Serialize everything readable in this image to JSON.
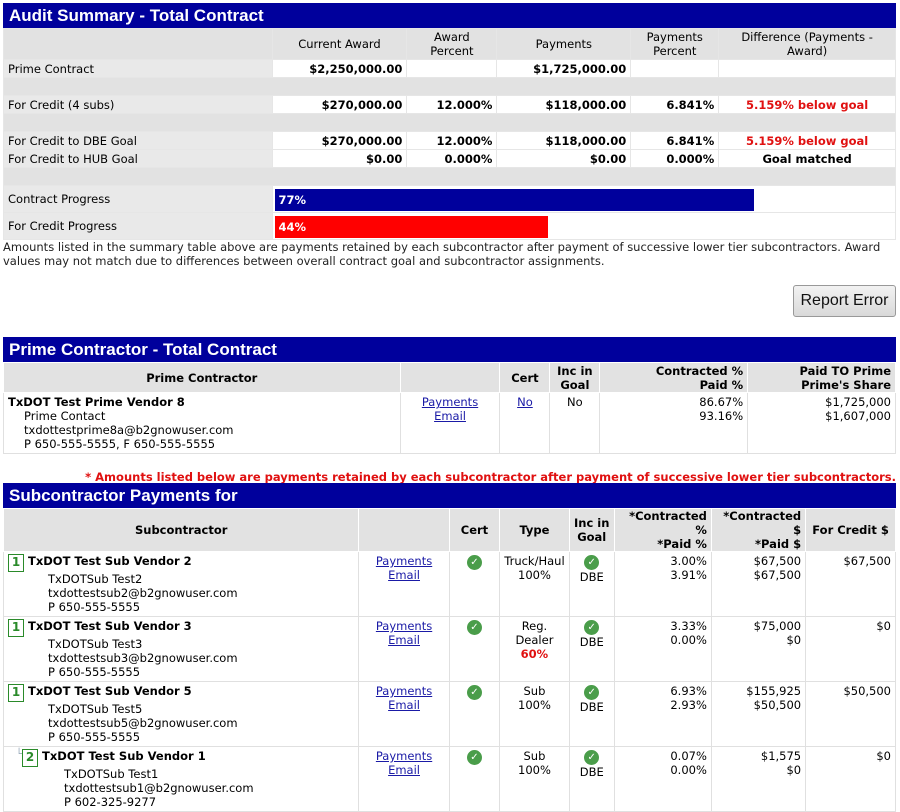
{
  "audit": {
    "title": "Audit Summary - Total Contract",
    "headers": [
      "Current Award",
      "Award Percent",
      "Payments",
      "Payments Percent",
      "Difference (Payments - Award)"
    ],
    "rows": {
      "prime": {
        "label": "Prime Contract",
        "award": "$2,250,000.00",
        "pct": "",
        "payments": "$1,725,000.00",
        "ppct": "",
        "diff": ""
      },
      "credit": {
        "label": "For Credit (4 subs)",
        "award": "$270,000.00",
        "pct": "12.000%",
        "payments": "$118,000.00",
        "ppct": "6.841%",
        "diff": "5.159% below goal"
      },
      "dbe": {
        "label": "For Credit to DBE Goal",
        "award": "$270,000.00",
        "pct": "12.000%",
        "payments": "$118,000.00",
        "ppct": "6.841%",
        "diff": "5.159% below goal"
      },
      "hub": {
        "label": "For Credit to HUB Goal",
        "award": "$0.00",
        "pct": "0.000%",
        "payments": "$0.00",
        "ppct": "0.000%",
        "diff": "Goal matched"
      }
    },
    "contract_progress": {
      "label": "Contract Progress",
      "text": "77%",
      "value": 0.77,
      "color": "#00009c"
    },
    "credit_progress": {
      "label": "For Credit Progress",
      "text": "44%",
      "value": 0.44,
      "color": "#ff0000"
    },
    "note": "Amounts listed in the summary table above are payments retained by each subcontractor after payment of successive lower tier subcontractors. Award values may not match due to differences between overall contract goal and subcontractor assignments."
  },
  "report_error_label": "Report Error",
  "prime": {
    "title": "Prime Contractor - Total Contract",
    "headers": {
      "contractor": "Prime Contractor",
      "cert": "Cert",
      "inc1": "Inc in",
      "inc2": "Goal",
      "pct1": "Contracted %",
      "pct2": "Paid %",
      "paid1": "Paid TO Prime",
      "paid2": "Prime's Share"
    },
    "name": "TxDOT Test Prime Vendor 8",
    "contact": "Prime Contact",
    "email": "txdottestprime8a@b2gnowuser.com",
    "phone": "P 650-555-5555, F 650-555-5555",
    "payments_link": "Payments",
    "email_link": "Email",
    "cert": "No",
    "inc": "No",
    "contracted_pct": "86.67%",
    "paid_pct": "93.16%",
    "paid_to": "$1,725,000",
    "share": "$1,607,000"
  },
  "asterisk_note": "* Amounts listed below are payments retained by each subcontractor after payment of successive lower tier subcontractors.",
  "subs": {
    "title": "Subcontractor Payments for",
    "headers": {
      "sub": "Subcontractor",
      "cert": "Cert",
      "type": "Type",
      "inc1": "Inc in",
      "inc2": "Goal",
      "pct1": "*Contracted %",
      "pct2": "*Paid %",
      "amt1": "*Contracted $",
      "amt2": "*Paid $",
      "credit": "For Credit $"
    },
    "rows": [
      {
        "tier": "1",
        "name": "TxDOT Test Sub Vendor 2",
        "contact": "TxDOTSub Test2",
        "email": "txdottestsub2@b2gnowuser.com",
        "phone": "P 650-555-5555",
        "payments": "Payments",
        "email_link": "Email",
        "type1": "Truck/Haul",
        "type2": "100%",
        "goal": "DBE",
        "cpct": "3.00%",
        "ppct": "3.91%",
        "camt": "$67,500",
        "pamt": "$67,500",
        "credit": "$67,500"
      },
      {
        "tier": "1",
        "name": "TxDOT Test Sub Vendor 3",
        "contact": "TxDOTSub Test3",
        "email": "txdottestsub3@b2gnowuser.com",
        "phone": "P 650-555-5555",
        "payments": "Payments",
        "email_link": "Email",
        "type1": "Reg.",
        "type2": "Dealer",
        "type3": "60%",
        "goal": "DBE",
        "cpct": "3.33%",
        "ppct": "0.00%",
        "camt": "$75,000",
        "pamt": "$0",
        "credit": "$0"
      },
      {
        "tier": "1",
        "name": "TxDOT Test Sub Vendor 5",
        "contact": "TxDOTSub Test5",
        "email": "txdottestsub5@b2gnowuser.com",
        "phone": "P 650-555-5555",
        "payments": "Payments",
        "email_link": "Email",
        "type1": "Sub",
        "type2": "100%",
        "goal": "DBE",
        "cpct": "6.93%",
        "ppct": "2.93%",
        "camt": "$155,925",
        "pamt": "$50,500",
        "credit": "$50,500"
      },
      {
        "tier": "2",
        "name": "TxDOT Test Sub Vendor 1",
        "contact": "TxDOTSub Test1",
        "email": "txdottestsub1@b2gnowuser.com",
        "phone": "P 602-325-9277",
        "payments": "Payments",
        "email_link": "Email",
        "type1": "Sub",
        "type2": "100%",
        "goal": "DBE",
        "cpct": "0.07%",
        "ppct": "0.00%",
        "camt": "$1,575",
        "pamt": "$0",
        "credit": "$0"
      }
    ]
  }
}
